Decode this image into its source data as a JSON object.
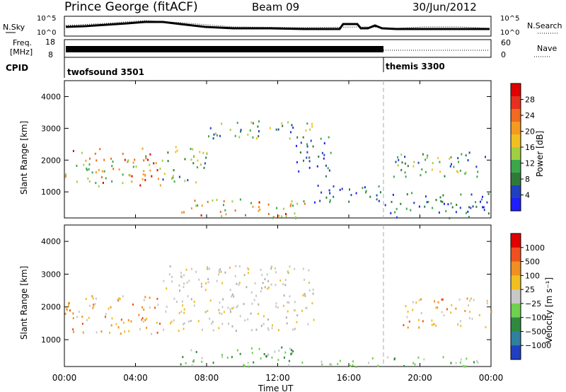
{
  "header": {
    "station": "Prince George (fitACF)",
    "beam": "Beam 09",
    "date": "30/Jun/2012"
  },
  "noise_panel": {
    "left_label": "N.Sky",
    "left_ticks": [
      "10^5",
      "10^0"
    ],
    "right_ticks": [
      "10^5",
      "10^0"
    ],
    "right_label": "N.Search"
  },
  "freq_panel": {
    "left_label_1": "Freq.",
    "left_label_2": "[MHz]",
    "left_ticks": [
      "18",
      "8"
    ],
    "right_ticks": [
      "60",
      "0"
    ],
    "right_label": "Nave"
  },
  "cpid_panel": {
    "left_label": "CPID",
    "programs": [
      {
        "name": "twofsound 3501",
        "start": "00:00",
        "end": "18:00"
      },
      {
        "name": "themis 3300",
        "start": "18:00",
        "end": "00:00"
      }
    ]
  },
  "chart_data": [
    {
      "type": "heatmap",
      "title": "",
      "xlabel": "Time UT",
      "ylabel": "Slant Range [km]",
      "xlim": [
        0,
        24
      ],
      "ylim": [
        180,
        4500
      ],
      "x_ticks": [
        "00:00",
        "04:00",
        "08:00",
        "12:00",
        "16:00",
        "20:00",
        "00:00"
      ],
      "y_ticks": [
        1000,
        2000,
        3000,
        4000
      ],
      "colorbar": {
        "label": "Power [dB]",
        "ticks": [
          "4",
          "8",
          "12",
          "16",
          "20",
          "24",
          "28"
        ],
        "colors": [
          "#1e1eff",
          "#2040c0",
          "#2f7a3a",
          "#3ca64b",
          "#a0d040",
          "#f0c020",
          "#f59a20",
          "#f06a20",
          "#e83020",
          "#e00000"
        ]
      },
      "scatter_regions": [
        {
          "t": [
            0.0,
            5.5
          ],
          "range": [
            1200,
            2400
          ],
          "level": "high"
        },
        {
          "t": [
            5.5,
            8.0
          ],
          "range": [
            1300,
            2500
          ],
          "level": "mid"
        },
        {
          "t": [
            8.0,
            14.0
          ],
          "range": [
            2700,
            3300
          ],
          "level": "mid"
        },
        {
          "t": [
            13.0,
            15.0
          ],
          "range": [
            1500,
            2800
          ],
          "level": "low"
        },
        {
          "t": [
            6.5,
            13.5
          ],
          "range": [
            200,
            800
          ],
          "level": "high"
        },
        {
          "t": [
            14.0,
            18.0
          ],
          "range": [
            700,
            1300
          ],
          "level": "low"
        },
        {
          "t": [
            18.5,
            24.0
          ],
          "range": [
            1500,
            2300
          ],
          "level": "mid"
        },
        {
          "t": [
            18.0,
            24.0
          ],
          "range": [
            200,
            1000
          ],
          "level": "low"
        }
      ]
    },
    {
      "type": "heatmap",
      "title": "",
      "xlabel": "Time UT",
      "ylabel": "Slant Range [km]",
      "xlim": [
        0,
        24
      ],
      "ylim": [
        180,
        4500
      ],
      "x_ticks": [
        "00:00",
        "04:00",
        "08:00",
        "12:00",
        "16:00",
        "20:00",
        "00:00"
      ],
      "y_ticks": [
        1000,
        2000,
        3000,
        4000
      ],
      "colorbar": {
        "label": "Velocity [m s⁻¹]",
        "ticks": [
          "1000",
          "500",
          "100",
          "25",
          "−25",
          "−100",
          "−500",
          "−1000"
        ],
        "colors": [
          "#2040c0",
          "#3080a0",
          "#2f8a40",
          "#70d050",
          "#c8c8c8",
          "#f0c020",
          "#f09020",
          "#f05020",
          "#e00000"
        ]
      },
      "scatter_regions": [
        {
          "t": [
            0.0,
            5.5
          ],
          "range": [
            1200,
            2400
          ],
          "level": "orange"
        },
        {
          "t": [
            5.5,
            14.0
          ],
          "range": [
            1300,
            3300
          ],
          "level": "gray"
        },
        {
          "t": [
            6.5,
            13.5
          ],
          "range": [
            200,
            800
          ],
          "level": "green"
        },
        {
          "t": [
            14.0,
            18.0
          ],
          "range": [
            200,
            500
          ],
          "level": "green"
        },
        {
          "t": [
            18.0,
            24.0
          ],
          "range": [
            200,
            500
          ],
          "level": "green"
        },
        {
          "t": [
            19.0,
            24.0
          ],
          "range": [
            1400,
            2300
          ],
          "level": "orange"
        }
      ]
    }
  ]
}
